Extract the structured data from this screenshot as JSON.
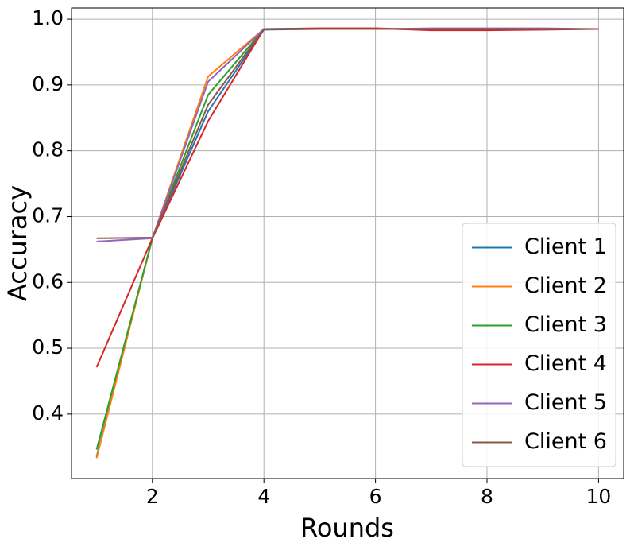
{
  "chart_data": {
    "type": "line",
    "x_label": "Rounds",
    "y_label": "Accuracy",
    "x": [
      1,
      2,
      3,
      4,
      5,
      6,
      7,
      8,
      9,
      10
    ],
    "series": [
      {
        "name": "Client 1",
        "color": "#1f77b4",
        "values": [
          0.335,
          0.667,
          0.86,
          0.984,
          0.985,
          0.985,
          0.985,
          0.985,
          0.985,
          0.985
        ]
      },
      {
        "name": "Client 2",
        "color": "#ff7f0e",
        "values": [
          0.333,
          0.667,
          0.913,
          0.985,
          0.986,
          0.986,
          0.985,
          0.985,
          0.985,
          0.985
        ]
      },
      {
        "name": "Client 3",
        "color": "#2ca02c",
        "values": [
          0.346,
          0.667,
          0.885,
          0.985,
          0.985,
          0.985,
          0.985,
          0.985,
          0.985,
          0.985
        ]
      },
      {
        "name": "Client 4",
        "color": "#d62728",
        "values": [
          0.471,
          0.667,
          0.845,
          0.985,
          0.986,
          0.986,
          0.983,
          0.983,
          0.984,
          0.985
        ]
      },
      {
        "name": "Client 5",
        "color": "#9467bd",
        "values": [
          0.662,
          0.667,
          0.905,
          0.985,
          0.985,
          0.985,
          0.986,
          0.986,
          0.986,
          0.985
        ]
      },
      {
        "name": "Client 6",
        "color": "#8c564b",
        "values": [
          0.667,
          0.668,
          0.87,
          0.985,
          0.985,
          0.985,
          0.985,
          0.985,
          0.985,
          0.985
        ]
      }
    ],
    "xlim": [
      0.55,
      10.45
    ],
    "xticks": [
      2,
      4,
      6,
      8,
      10
    ],
    "ylim": [
      0.302,
      1.017
    ],
    "yticks": [
      0.4,
      0.5,
      0.6,
      0.7,
      0.8,
      0.9,
      {
        "value": 1.0,
        "label": "1.0"
      }
    ],
    "grid": true,
    "legend": "lower right"
  }
}
